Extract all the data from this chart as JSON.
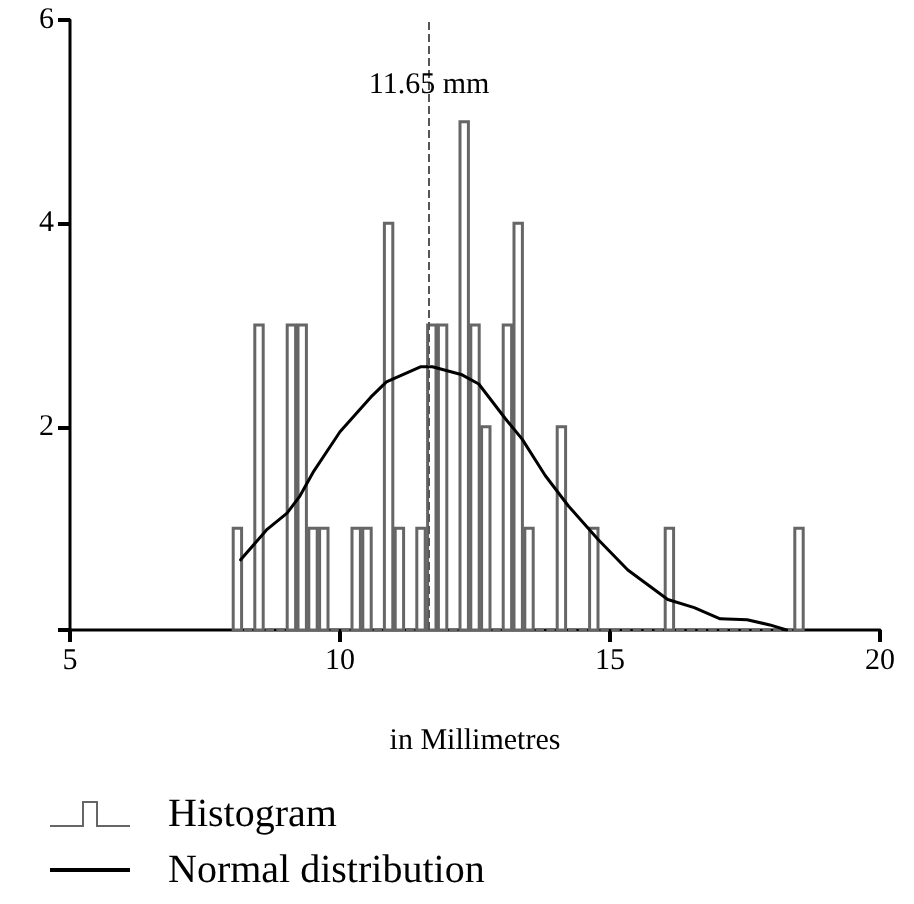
{
  "chart_data": {
    "type": "histogram",
    "xlabel": "in Millimetres",
    "xlim": [
      5,
      20
    ],
    "xticks": [
      5,
      10,
      15,
      20
    ],
    "ylim": [
      0,
      6
    ],
    "yticks": [
      {
        "value": 0,
        "label": null
      },
      2,
      4,
      6
    ],
    "grid": false,
    "legend": "bottom left",
    "ref_lines": [
      {
        "axis": "x",
        "value": 11.65,
        "label": "11.65 mm",
        "line_style": "dashed",
        "color": "#555555"
      }
    ],
    "series": [
      {
        "name": "Histogram",
        "color": "#666666",
        "bins": [
          8.0,
          8.2,
          8.4,
          8.6,
          8.8,
          9.0,
          9.2,
          9.4,
          9.6,
          9.8,
          10.0,
          10.2,
          10.4,
          10.6,
          10.8,
          11.0,
          11.2,
          11.4,
          11.6,
          11.8,
          12.0,
          12.2,
          12.4,
          12.6,
          12.8,
          13.0,
          13.2,
          13.4,
          13.6,
          13.8,
          14.0,
          14.2,
          14.4,
          14.6,
          14.8,
          15.0,
          15.2,
          15.4,
          15.6,
          15.8,
          16.0,
          16.2,
          16.4,
          16.6,
          16.8,
          17.0,
          17.2,
          17.4,
          17.6,
          17.8,
          18.0,
          18.2,
          18.4,
          18.6
        ],
        "values": [
          1,
          0,
          3,
          0,
          0,
          3,
          3,
          1,
          1,
          0,
          0,
          1,
          1,
          0,
          4,
          1,
          0,
          1,
          3,
          3,
          0,
          5,
          3,
          2,
          0,
          3,
          4,
          1,
          0,
          0,
          2,
          0,
          0,
          1,
          0,
          0,
          0,
          0,
          0,
          0,
          1,
          0,
          0,
          0,
          0,
          0,
          0,
          0,
          0,
          0,
          0,
          0,
          1
        ]
      },
      {
        "name": "Normal distribution",
        "type": "line",
        "color": "#000000",
        "marker": "none",
        "line_style": "solid",
        "x": [
          8.16,
          8.65,
          9.02,
          9.26,
          9.5,
          10.0,
          10.57,
          10.86,
          11.5,
          11.71,
          12.26,
          12.57,
          13.06,
          13.37,
          13.8,
          14.23,
          14.78,
          15.33,
          16.07,
          16.56,
          17.04,
          17.54,
          17.96,
          18.27
        ],
        "values": [
          0.69,
          0.99,
          1.15,
          1.32,
          1.55,
          1.95,
          2.29,
          2.44,
          2.59,
          2.59,
          2.51,
          2.42,
          2.08,
          1.88,
          1.52,
          1.22,
          0.89,
          0.59,
          0.3,
          0.22,
          0.11,
          0.1,
          0.05,
          0.0
        ]
      }
    ]
  }
}
